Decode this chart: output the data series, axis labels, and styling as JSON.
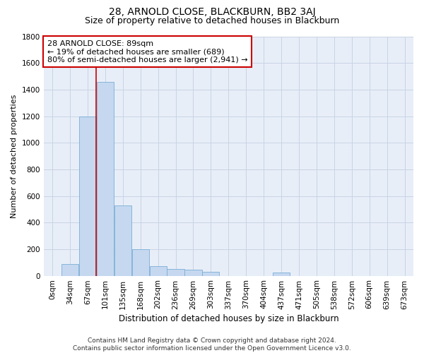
{
  "title": "28, ARNOLD CLOSE, BLACKBURN, BB2 3AJ",
  "subtitle": "Size of property relative to detached houses in Blackburn",
  "xlabel": "Distribution of detached houses by size in Blackburn",
  "ylabel": "Number of detached properties",
  "categories": [
    "0sqm",
    "34sqm",
    "67sqm",
    "101sqm",
    "135sqm",
    "168sqm",
    "202sqm",
    "236sqm",
    "269sqm",
    "303sqm",
    "337sqm",
    "370sqm",
    "404sqm",
    "437sqm",
    "471sqm",
    "505sqm",
    "538sqm",
    "572sqm",
    "606sqm",
    "639sqm",
    "673sqm"
  ],
  "bar_values": [
    0,
    90,
    1200,
    1460,
    530,
    200,
    70,
    50,
    45,
    30,
    0,
    0,
    0,
    25,
    0,
    0,
    0,
    0,
    0,
    0,
    0
  ],
  "bar_color": "#c5d8f0",
  "bar_edge_color": "#7aaed6",
  "grid_color": "#c8d4e4",
  "background_color": "#e8eef8",
  "vline_x": 2.5,
  "vline_color": "#cc0000",
  "annotation_text": "28 ARNOLD CLOSE: 89sqm\n← 19% of detached houses are smaller (689)\n80% of semi-detached houses are larger (2,941) →",
  "annotation_box_color": "#ffffff",
  "annotation_box_edge": "#cc0000",
  "ylim": [
    0,
    1800
  ],
  "yticks": [
    0,
    200,
    400,
    600,
    800,
    1000,
    1200,
    1400,
    1600,
    1800
  ],
  "footer": "Contains HM Land Registry data © Crown copyright and database right 2024.\nContains public sector information licensed under the Open Government Licence v3.0.",
  "title_fontsize": 10,
  "subtitle_fontsize": 9,
  "xlabel_fontsize": 8.5,
  "ylabel_fontsize": 8,
  "tick_fontsize": 7.5,
  "annotation_fontsize": 8,
  "footer_fontsize": 6.5
}
